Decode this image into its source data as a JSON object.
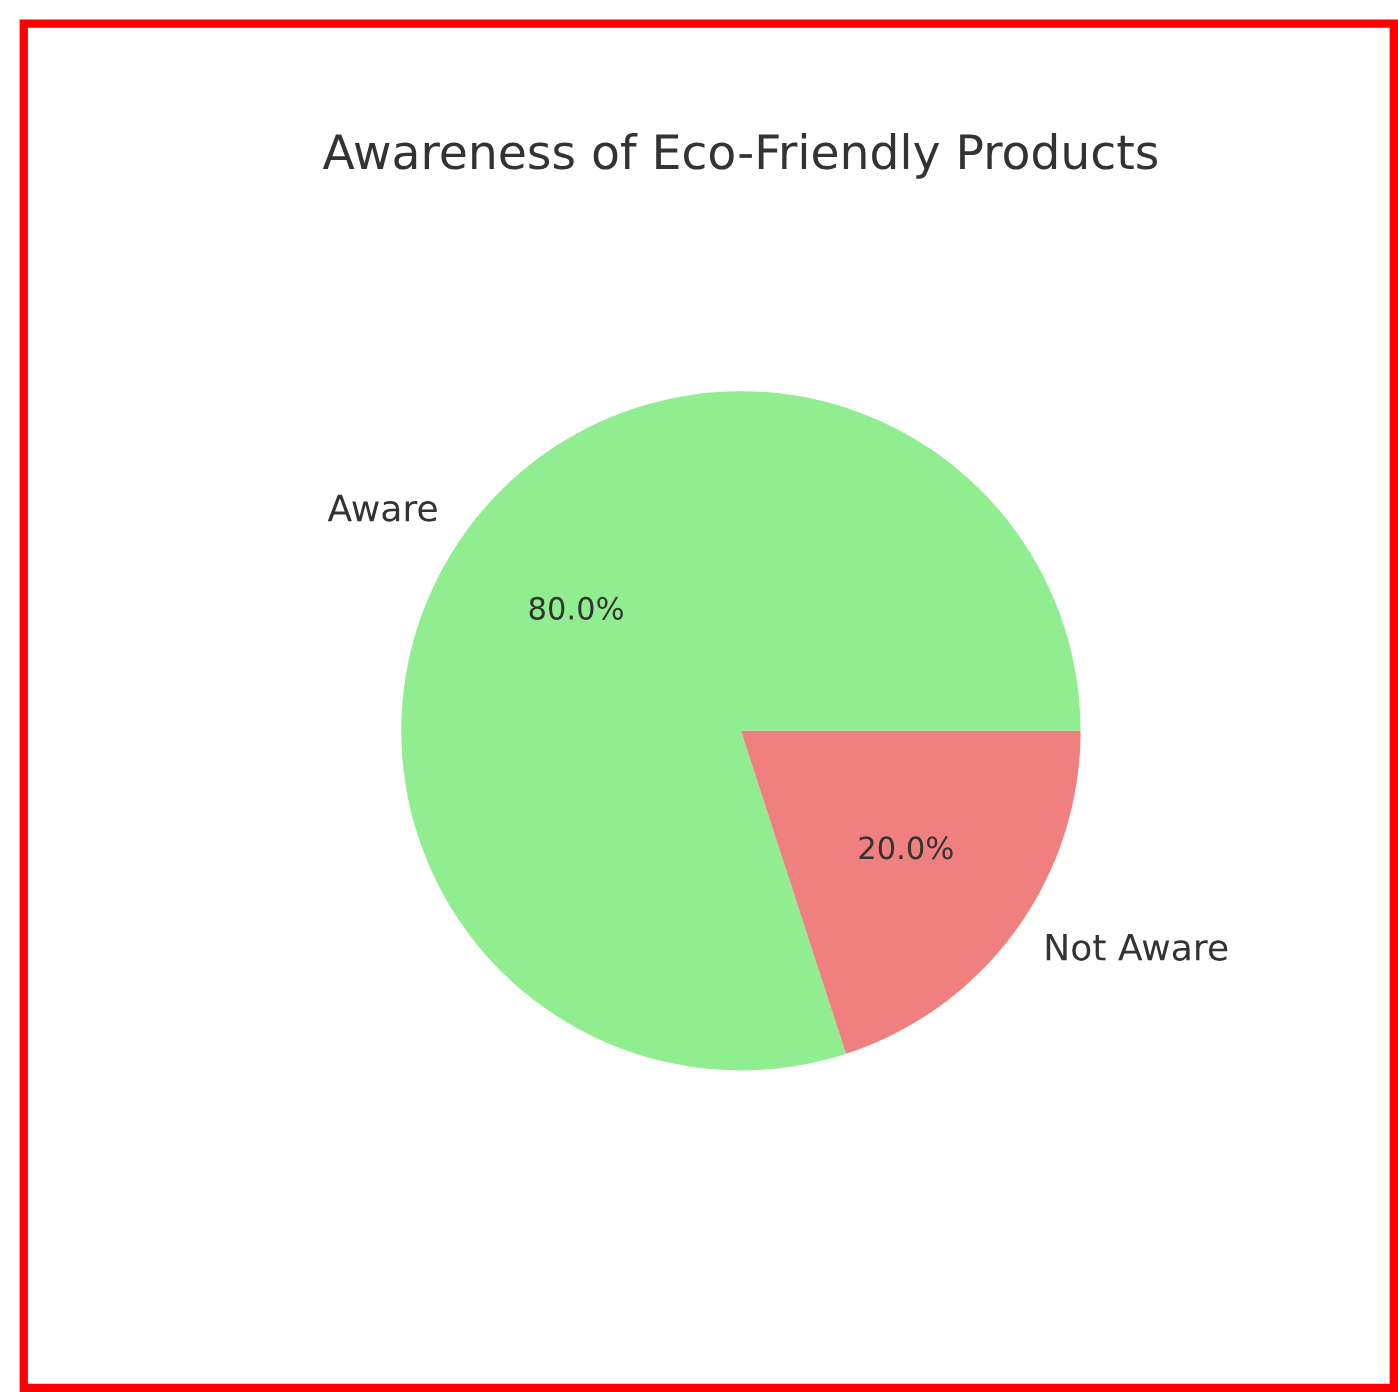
{
  "chart_data": {
    "type": "pie",
    "title": "Awareness of Eco-Friendly Products",
    "categories": [
      "Aware",
      "Not Aware"
    ],
    "values": [
      80,
      20
    ],
    "colors": [
      "#90ee90",
      "#f08080"
    ],
    "value_labels": [
      "80.0%",
      "20.0%"
    ]
  }
}
